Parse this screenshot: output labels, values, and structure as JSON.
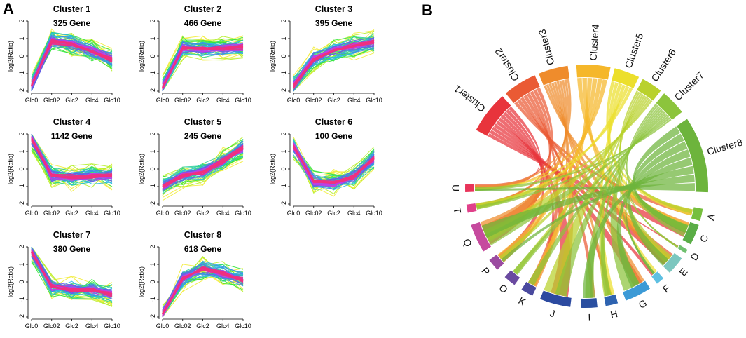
{
  "panel_a_label": "A",
  "panel_b_label": "B",
  "chart_data": [
    {
      "type": "line",
      "panel": "A",
      "description_note": "8 gene expression profile clusters",
      "categories": [
        "Glc0",
        "Glc02",
        "Glc2",
        "Glc4",
        "Glc10"
      ],
      "ylabel": "log2(Ratio)",
      "yticks": [
        -2,
        -1,
        0,
        1,
        2
      ],
      "ylim": [
        -2,
        2
      ],
      "clusters": [
        {
          "title": "Cluster 1",
          "gene_count": "325 Gene",
          "centroid": [
            -1.7,
            0.85,
            0.7,
            0.3,
            -0.2
          ]
        },
        {
          "title": "Cluster 2",
          "gene_count": "466 Gene",
          "centroid": [
            -1.8,
            0.45,
            0.45,
            0.45,
            0.5
          ]
        },
        {
          "title": "Cluster 3",
          "gene_count": "395 Gene",
          "centroid": [
            -1.7,
            -0.15,
            0.3,
            0.6,
            0.8
          ]
        },
        {
          "title": "Cluster 4",
          "gene_count": "1142 Gene",
          "centroid": [
            1.7,
            -0.4,
            -0.45,
            -0.4,
            -0.4
          ]
        },
        {
          "title": "Cluster 5",
          "gene_count": "245 Gene",
          "centroid": [
            -1.0,
            -0.4,
            -0.2,
            0.45,
            1.2
          ]
        },
        {
          "title": "Cluster 6",
          "gene_count": "100 Gene",
          "centroid": [
            1.3,
            -0.7,
            -0.8,
            -0.45,
            0.6
          ]
        },
        {
          "title": "Cluster 7",
          "gene_count": "380 Gene",
          "centroid": [
            1.7,
            -0.3,
            -0.45,
            -0.45,
            -0.7
          ]
        },
        {
          "title": "Cluster 8",
          "gene_count": "618 Gene",
          "centroid": [
            -1.85,
            0.2,
            0.75,
            0.5,
            0.1
          ]
        }
      ]
    },
    {
      "type": "chord",
      "panel": "B",
      "clusters": [
        {
          "label": "Cluster1",
          "color": "#e8343c"
        },
        {
          "label": "Cluster2",
          "color": "#ea5a34"
        },
        {
          "label": "Cluster3",
          "color": "#ef8c2c"
        },
        {
          "label": "Cluster4",
          "color": "#f5b72a"
        },
        {
          "label": "Cluster5",
          "color": "#ecdf2c"
        },
        {
          "label": "Cluster6",
          "color": "#b9d12c"
        },
        {
          "label": "Cluster7",
          "color": "#8cc43c"
        },
        {
          "label": "Cluster8",
          "color": "#6db43c"
        }
      ],
      "categories": [
        {
          "label": "A",
          "color": "#76bf3e"
        },
        {
          "label": "C",
          "color": "#5aad46"
        },
        {
          "label": "D",
          "color": "#6fc06e"
        },
        {
          "label": "E",
          "color": "#7cc7bf"
        },
        {
          "label": "F",
          "color": "#5ec0e2"
        },
        {
          "label": "G",
          "color": "#3c9ad6"
        },
        {
          "label": "H",
          "color": "#2e63b0"
        },
        {
          "label": "I",
          "color": "#2a4fa0"
        },
        {
          "label": "J",
          "color": "#2c4aa0"
        },
        {
          "label": "K",
          "color": "#4a4a9e"
        },
        {
          "label": "O",
          "color": "#6a4aa0"
        },
        {
          "label": "P",
          "color": "#9a4aa0"
        },
        {
          "label": "Q",
          "color": "#c64a9e"
        },
        {
          "label": "T",
          "color": "#e0408a"
        },
        {
          "label": "U",
          "color": "#e8345a"
        }
      ]
    }
  ]
}
